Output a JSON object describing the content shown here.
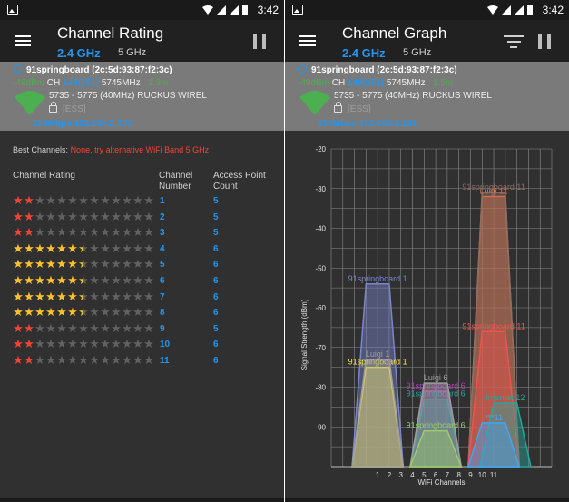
{
  "status": {
    "time": "3:42"
  },
  "left": {
    "title": "Channel Rating",
    "band_active": "2.4 GHz",
    "band_other": "5 GHz",
    "ap": {
      "name": "91springboard (2c:5d:93:87:f2:3c)",
      "signal": "-48dBm",
      "ch_label": "CH",
      "channel": "149(151)",
      "freq": "5745MHz",
      "distance": "1.3m",
      "range": "5735 - 5775 (40MHz)",
      "vendor": "RUCKUS WIREL",
      "security": "[ESS]",
      "speed_ip": "150Mbps 192.168.2.191"
    },
    "best_label": "Best Channels:",
    "best_value": "None, try alternative WiFi Band 5 GHz",
    "headers": {
      "rating": "Channel Rating",
      "number": "Channel\nNumber",
      "count": "Access Point\nCount"
    },
    "rows": [
      {
        "stars": 2,
        "half": false,
        "number": "1",
        "count": "5"
      },
      {
        "stars": 2,
        "half": false,
        "number": "2",
        "count": "5"
      },
      {
        "stars": 2,
        "half": false,
        "number": "3",
        "count": "5"
      },
      {
        "stars": 6,
        "half": true,
        "number": "4",
        "count": "6"
      },
      {
        "stars": 6,
        "half": true,
        "number": "5",
        "count": "6"
      },
      {
        "stars": 6,
        "half": true,
        "number": "6",
        "count": "6"
      },
      {
        "stars": 6,
        "half": true,
        "number": "7",
        "count": "6"
      },
      {
        "stars": 6,
        "half": true,
        "number": "8",
        "count": "6"
      },
      {
        "stars": 2,
        "half": false,
        "number": "9",
        "count": "5"
      },
      {
        "stars": 2,
        "half": false,
        "number": "10",
        "count": "6"
      },
      {
        "stars": 2,
        "half": false,
        "number": "11",
        "count": "6"
      }
    ]
  },
  "right": {
    "title": "Channel Graph",
    "band_active": "2.4 GHz",
    "band_other": "5 GHz",
    "ap": {
      "name": "91springboard (2c:5d:93:87:f2:3c)",
      "signal": "-49dBm",
      "ch_label": "CH",
      "channel": "149(151)",
      "freq": "5745MHz",
      "distance": "1.5m",
      "range": "5735 - 5775 (40MHz)",
      "vendor": "RUCKUS WIREL",
      "security": "[ESS]",
      "speed_ip": "150Mbps 192.168.2.191"
    }
  },
  "colors": {
    "star_red": "#f44336",
    "star_gold": "#fbc02d",
    "star_gray": "#616161",
    "accent": "#2196f3",
    "good": "#4caf50"
  },
  "chart_data": {
    "type": "area",
    "xlabel": "WiFi Channels",
    "ylabel": "Signal Strength (dBm)",
    "x_ticks": [
      "1",
      "2",
      "3",
      "4",
      "5",
      "6",
      "7",
      "8",
      "9",
      "10",
      "11"
    ],
    "y_ticks": [
      "-20",
      "-30",
      "-40",
      "-50",
      "-60",
      "-70",
      "-80",
      "-90"
    ],
    "ylim": [
      -100,
      -20
    ],
    "grid": true,
    "series": [
      {
        "name": "91springboard 1",
        "channel": 1,
        "level": -54,
        "color": "#7986cb"
      },
      {
        "name": "91springboard 1",
        "channel": 1,
        "level": -75,
        "color": "#ffeb3b"
      },
      {
        "name": "Luigi 1",
        "channel": 1,
        "level": -73,
        "color": "#9e9e9e"
      },
      {
        "name": "91springboard 6",
        "channel": 6,
        "level": -81,
        "color": "#ab47bc"
      },
      {
        "name": "91springboard 6",
        "channel": 6,
        "level": -83,
        "color": "#26a69a"
      },
      {
        "name": "Luigi 6",
        "channel": 6,
        "level": -79,
        "color": "#9e9e9e"
      },
      {
        "name": "91springboard 6",
        "channel": 6,
        "level": -91,
        "color": "#9ccc65"
      },
      {
        "name": "Luigi 11",
        "channel": 11,
        "level": -32,
        "color": "#ff7043"
      },
      {
        "name": "91springboard 11",
        "channel": 11,
        "level": -31,
        "color": "#8d6e63"
      },
      {
        "name": "91springboard 11",
        "channel": 11,
        "level": -66,
        "color": "#ef5350"
      },
      {
        "name": "Internet 12",
        "channel": 12,
        "level": -84,
        "color": "#26a69a"
      },
      {
        "name": "***11",
        "channel": 11,
        "level": -89,
        "color": "#42a5f5"
      }
    ]
  }
}
